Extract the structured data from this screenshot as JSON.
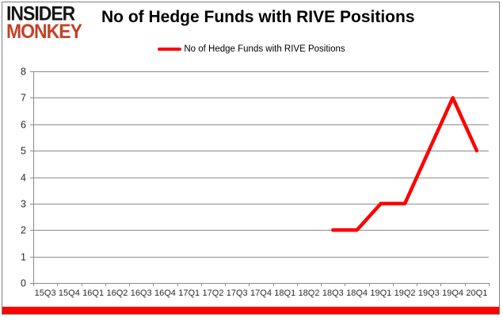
{
  "header": {
    "logo_line1": "INSIDER",
    "logo_line2": "MONKEY",
    "title": "No of Hedge Funds with RIVE Positions"
  },
  "legend": {
    "label": "No of Hedge Funds with RIVE Positions",
    "swatch_color": "#fe0100"
  },
  "chart_data": {
    "type": "line",
    "title": "No of Hedge Funds with RIVE Positions",
    "categories": [
      "15Q3",
      "15Q4",
      "16Q1",
      "16Q2",
      "16Q3",
      "16Q4",
      "17Q1",
      "17Q2",
      "17Q3",
      "17Q4",
      "18Q1",
      "18Q2",
      "18Q3",
      "18Q4",
      "19Q1",
      "19Q2",
      "19Q3",
      "19Q4",
      "20Q1"
    ],
    "series": [
      {
        "name": "No of Hedge Funds with RIVE Positions",
        "color": "#fe0100",
        "values": [
          null,
          null,
          null,
          null,
          null,
          null,
          null,
          null,
          null,
          null,
          null,
          null,
          2,
          2,
          3,
          3,
          5,
          7,
          5
        ]
      }
    ],
    "ylim": [
      0,
      8
    ],
    "yticks": [
      0,
      1,
      2,
      3,
      4,
      5,
      6,
      7,
      8
    ],
    "grid": "horizontal",
    "legend_position": "top",
    "xlabel": "",
    "ylabel": ""
  },
  "colors": {
    "series_red": "#fe0100",
    "logo_red": "#c63f26",
    "grid_gray": "#8c8c8c",
    "card_border": "#7d7d7d",
    "accent_bar": "#fe0100",
    "label_text": "#2b2b2b"
  }
}
